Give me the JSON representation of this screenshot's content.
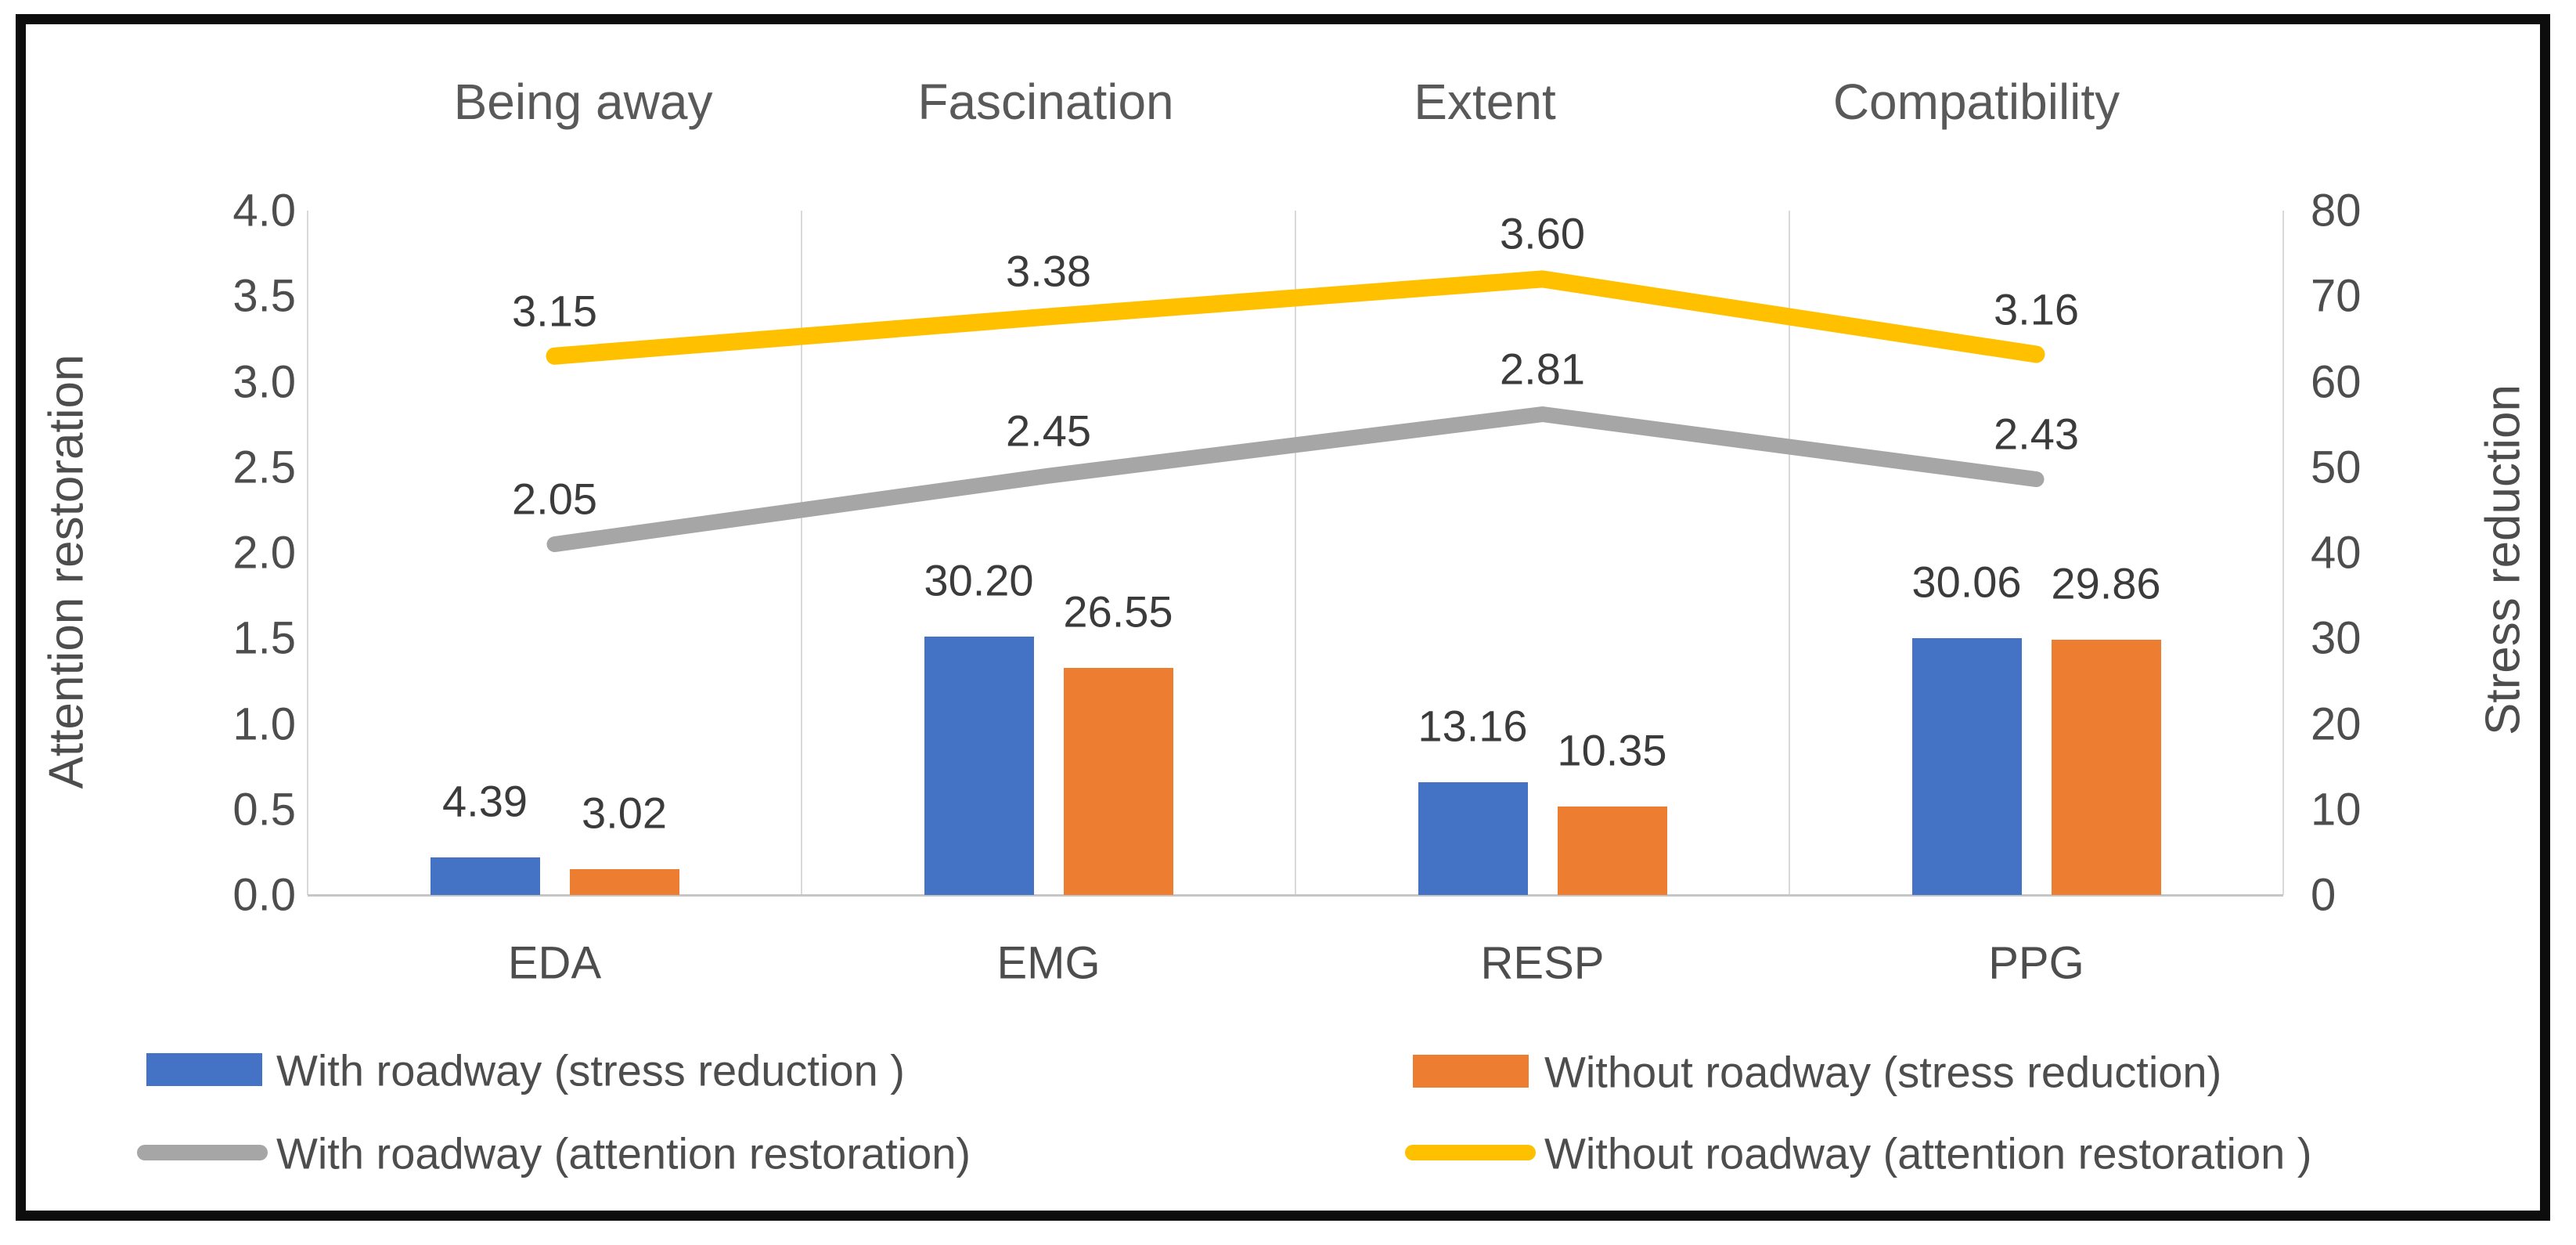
{
  "chart_data": {
    "type": "combo-bar-line",
    "categories": [
      "EDA",
      "EMG",
      "RESP",
      "PPG"
    ],
    "panel_titles": [
      "Being away",
      "Fascination",
      "Extent",
      "Compatibility"
    ],
    "series": [
      {
        "name": "With roadway (stress reduction )",
        "type": "bar",
        "axis": "right",
        "color": "#4472C4",
        "values": [
          4.39,
          30.2,
          13.16,
          30.06
        ],
        "labels": [
          "4.39",
          "30.20",
          "13.16",
          "30.06"
        ]
      },
      {
        "name": "Without roadway (stress reduction)",
        "type": "bar",
        "axis": "right",
        "color": "#ED7D31",
        "values": [
          3.02,
          26.55,
          10.35,
          29.86
        ],
        "labels": [
          "3.02",
          "26.55",
          "10.35",
          "29.86"
        ]
      },
      {
        "name": "With roadway (attention restoration)",
        "type": "line",
        "axis": "left",
        "color": "#A6A6A6",
        "values": [
          2.05,
          2.45,
          2.81,
          2.43
        ],
        "labels": [
          "2.05",
          "2.45",
          "2.81",
          "2.43"
        ]
      },
      {
        "name": "Without roadway (attention restoration )",
        "type": "line",
        "axis": "left",
        "color": "#FFC000",
        "values": [
          3.15,
          3.38,
          3.6,
          3.16
        ],
        "labels": [
          "3.15",
          "3.38",
          "3.60",
          "3.16"
        ]
      }
    ],
    "left_axis": {
      "title": "Attention restoration",
      "min": 0.0,
      "max": 4.0,
      "step": 0.5,
      "tick_labels": [
        "0.0",
        "0.5",
        "1.0",
        "1.5",
        "2.0",
        "2.5",
        "3.0",
        "3.5",
        "4.0"
      ]
    },
    "right_axis": {
      "title": "Stress reduction",
      "min": 0,
      "max": 80,
      "step": 10,
      "tick_labels": [
        "0",
        "10",
        "20",
        "30",
        "40",
        "50",
        "60",
        "70",
        "80"
      ]
    },
    "legend": {
      "position": "bottom",
      "entries": [
        {
          "label": "With roadway (stress reduction )",
          "marker": "square",
          "color": "#4472C4"
        },
        {
          "label": "Without roadway (stress reduction)",
          "marker": "square",
          "color": "#ED7D31"
        },
        {
          "label": "With roadway (attention restoration)",
          "marker": "line",
          "color": "#A6A6A6"
        },
        {
          "label": "Without roadway (attention restoration )",
          "marker": "line",
          "color": "#FFC000"
        }
      ]
    },
    "layout_hints": {
      "gridlines": "vertical panel separators",
      "plot_background": "white",
      "frame": "black"
    }
  }
}
